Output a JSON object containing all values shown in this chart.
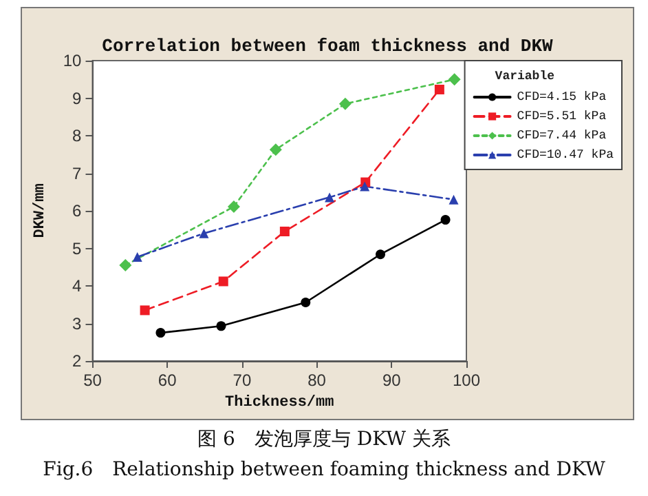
{
  "chart_data": {
    "type": "line",
    "title": "Correlation between foam thickness and DKW",
    "xlabel": "Thickness/mm",
    "ylabel": "DKW/mm",
    "legend_title": "Variable",
    "annotations": [
      "图 6　发泡厚度与 DKW 关系",
      "Fig.6　Relationship between foaming thickness and DKW"
    ],
    "xlim": [
      50,
      100
    ],
    "xticks": [
      50,
      60,
      70,
      80,
      90,
      100
    ],
    "ylim": [
      2,
      10
    ],
    "yticks": [
      2,
      3,
      4,
      5,
      6,
      7,
      8,
      9,
      10
    ],
    "grid": false,
    "legend": "top right",
    "series": [
      {
        "name": "CFD=4.15 kPa",
        "color": "#000000",
        "marker": "circle",
        "line_style": "solid",
        "x": [
          59.1,
          67.2,
          78.5,
          88.5,
          97.2
        ],
        "values": [
          2.75,
          2.93,
          3.56,
          4.84,
          5.76
        ]
      },
      {
        "name": "CFD=5.51 kPa",
        "color": "#ee1c25",
        "marker": "square",
        "line_style": "dashed",
        "x": [
          57.0,
          67.5,
          75.7,
          86.5,
          96.4
        ],
        "values": [
          3.35,
          4.12,
          5.45,
          6.76,
          9.23
        ]
      },
      {
        "name": "CFD=7.44 kPa",
        "color": "#4cc04c",
        "marker": "diamond",
        "line_style": "dotted",
        "x": [
          54.4,
          68.9,
          74.5,
          83.8,
          98.4
        ],
        "values": [
          4.55,
          6.11,
          7.63,
          8.85,
          9.5
        ]
      },
      {
        "name": "CFD=10.47 kPa",
        "color": "#2a3fae",
        "marker": "triangle",
        "line_style": "dashdot",
        "x": [
          56.0,
          64.9,
          81.7,
          86.4,
          98.3
        ],
        "values": [
          4.77,
          5.4,
          6.36,
          6.65,
          6.3
        ]
      }
    ]
  }
}
